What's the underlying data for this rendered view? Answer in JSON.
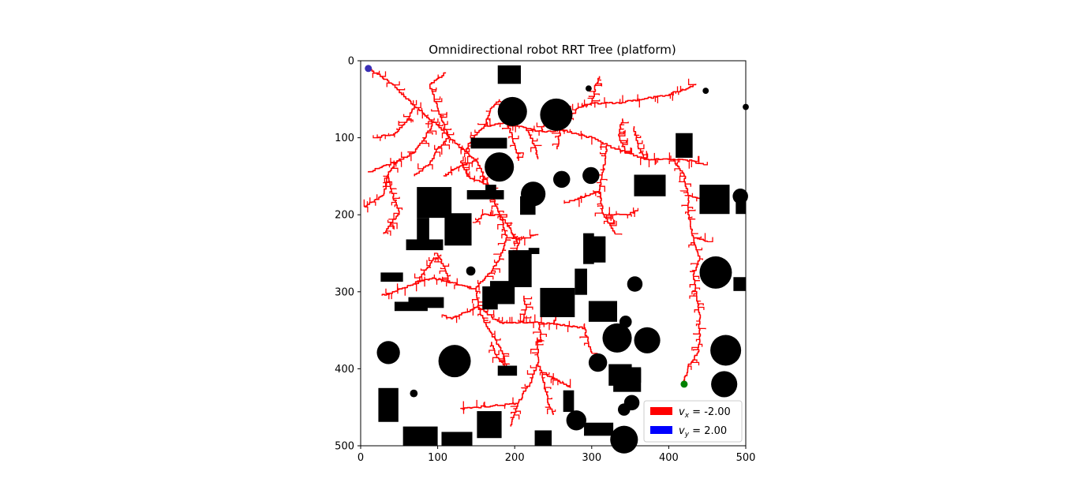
{
  "chart_data": {
    "type": "scatter",
    "title": "Omnidirectional robot RRT Tree (platform)",
    "xlabel": "",
    "ylabel": "",
    "xlim": [
      0,
      500
    ],
    "ylim": [
      500,
      0
    ],
    "y_inverted": true,
    "grid": false,
    "x_ticks": [
      "0",
      "100",
      "200",
      "300",
      "400",
      "500"
    ],
    "y_ticks": [
      "0",
      "100",
      "200",
      "300",
      "400",
      "500"
    ],
    "start_point": {
      "x": 10,
      "y": 10,
      "color": "#3a2fb5"
    },
    "goal_point": {
      "x": 420,
      "y": 420,
      "color": "#008000"
    },
    "tree_color": "#ff0000",
    "obstacle_color": "#000000",
    "legend": {
      "placement": "lower-right",
      "entries": [
        {
          "label_var": "v",
          "label_sub": "x",
          "label_value": " = -2.00",
          "color": "#ff0000"
        },
        {
          "label_var": "v",
          "label_sub": "y",
          "label_value": " = 2.00",
          "color": "#0000ff"
        }
      ]
    },
    "obstacles": {
      "circles": [
        {
          "cx": 197,
          "cy": 66,
          "r": 19
        },
        {
          "cx": 254,
          "cy": 70,
          "r": 21
        },
        {
          "cx": 180,
          "cy": 138,
          "r": 19
        },
        {
          "cx": 224,
          "cy": 173,
          "r": 16
        },
        {
          "cx": 261,
          "cy": 154,
          "r": 11
        },
        {
          "cx": 299,
          "cy": 149,
          "r": 11
        },
        {
          "cx": 296,
          "cy": 36,
          "r": 4
        },
        {
          "cx": 448,
          "cy": 39,
          "r": 4
        },
        {
          "cx": 500,
          "cy": 60,
          "r": 4
        },
        {
          "cx": 493,
          "cy": 176,
          "r": 10
        },
        {
          "cx": 461,
          "cy": 275,
          "r": 21
        },
        {
          "cx": 356,
          "cy": 290,
          "r": 10
        },
        {
          "cx": 143,
          "cy": 273,
          "r": 6
        },
        {
          "cx": 344,
          "cy": 339,
          "r": 8
        },
        {
          "cx": 333,
          "cy": 360,
          "r": 19
        },
        {
          "cx": 372,
          "cy": 363,
          "r": 17
        },
        {
          "cx": 474,
          "cy": 376,
          "r": 20
        },
        {
          "cx": 472,
          "cy": 420,
          "r": 17
        },
        {
          "cx": 36,
          "cy": 379,
          "r": 15
        },
        {
          "cx": 122,
          "cy": 390,
          "r": 21
        },
        {
          "cx": 308,
          "cy": 392,
          "r": 12
        },
        {
          "cx": 352,
          "cy": 444,
          "r": 10
        },
        {
          "cx": 342,
          "cy": 453,
          "r": 8
        },
        {
          "cx": 280,
          "cy": 467,
          "r": 13
        },
        {
          "cx": 342,
          "cy": 492,
          "r": 18
        },
        {
          "cx": 69,
          "cy": 432,
          "r": 5
        }
      ],
      "rects": [
        {
          "x": 178,
          "y": 6,
          "w": 30,
          "h": 24
        },
        {
          "x": 143,
          "y": 100,
          "w": 47,
          "h": 14
        },
        {
          "x": 409,
          "y": 94,
          "w": 22,
          "h": 32
        },
        {
          "x": 355,
          "y": 148,
          "w": 41,
          "h": 28
        },
        {
          "x": 440,
          "y": 161,
          "w": 39,
          "h": 38
        },
        {
          "x": 487,
          "y": 170,
          "w": 13,
          "h": 29
        },
        {
          "x": 73,
          "y": 164,
          "w": 45,
          "h": 40
        },
        {
          "x": 138,
          "y": 168,
          "w": 48,
          "h": 12
        },
        {
          "x": 162,
          "y": 161,
          "w": 14,
          "h": 12
        },
        {
          "x": 207,
          "y": 176,
          "w": 20,
          "h": 24
        },
        {
          "x": 73,
          "y": 204,
          "w": 16,
          "h": 30
        },
        {
          "x": 109,
          "y": 198,
          "w": 35,
          "h": 42
        },
        {
          "x": 59,
          "y": 232,
          "w": 48,
          "h": 14
        },
        {
          "x": 289,
          "y": 224,
          "w": 14,
          "h": 40
        },
        {
          "x": 300,
          "y": 228,
          "w": 18,
          "h": 34
        },
        {
          "x": 192,
          "y": 246,
          "w": 30,
          "h": 48
        },
        {
          "x": 218,
          "y": 243,
          "w": 14,
          "h": 8
        },
        {
          "x": 26,
          "y": 275,
          "w": 29,
          "h": 12
        },
        {
          "x": 278,
          "y": 270,
          "w": 16,
          "h": 34
        },
        {
          "x": 484,
          "y": 281,
          "w": 16,
          "h": 18
        },
        {
          "x": 168,
          "y": 286,
          "w": 32,
          "h": 30
        },
        {
          "x": 158,
          "y": 293,
          "w": 20,
          "h": 30
        },
        {
          "x": 233,
          "y": 295,
          "w": 45,
          "h": 38
        },
        {
          "x": 62,
          "y": 307,
          "w": 46,
          "h": 14
        },
        {
          "x": 44,
          "y": 313,
          "w": 43,
          "h": 12
        },
        {
          "x": 296,
          "y": 312,
          "w": 37,
          "h": 27
        },
        {
          "x": 178,
          "y": 396,
          "w": 25,
          "h": 13
        },
        {
          "x": 322,
          "y": 394,
          "w": 30,
          "h": 28
        },
        {
          "x": 328,
          "y": 400,
          "w": 36,
          "h": 30
        },
        {
          "x": 348,
          "y": 398,
          "w": 16,
          "h": 20
        },
        {
          "x": 23,
          "y": 425,
          "w": 26,
          "h": 44
        },
        {
          "x": 263,
          "y": 428,
          "w": 14,
          "h": 28
        },
        {
          "x": 151,
          "y": 455,
          "w": 32,
          "h": 35
        },
        {
          "x": 290,
          "y": 470,
          "w": 38,
          "h": 17
        },
        {
          "x": 55,
          "y": 475,
          "w": 45,
          "h": 25
        },
        {
          "x": 105,
          "y": 482,
          "w": 40,
          "h": 18
        },
        {
          "x": 226,
          "y": 480,
          "w": 22,
          "h": 20
        }
      ]
    },
    "tree_main_paths": [
      [
        [
          10,
          10
        ],
        [
          40,
          30
        ],
        [
          70,
          60
        ],
        [
          95,
          80
        ],
        [
          115,
          100
        ],
        [
          135,
          118
        ],
        [
          150,
          130
        ],
        [
          165,
          160
        ],
        [
          180,
          200
        ],
        [
          190,
          230
        ],
        [
          180,
          260
        ],
        [
          165,
          280
        ],
        [
          150,
          296
        ],
        [
          152,
          320
        ],
        [
          160,
          340
        ],
        [
          170,
          355
        ],
        [
          182,
          375
        ],
        [
          190,
          400
        ]
      ],
      [
        [
          150,
          296
        ],
        [
          120,
          288
        ],
        [
          95,
          282
        ],
        [
          70,
          290
        ],
        [
          45,
          300
        ],
        [
          28,
          305
        ]
      ],
      [
        [
          95,
          80
        ],
        [
          85,
          100
        ],
        [
          70,
          120
        ],
        [
          50,
          130
        ],
        [
          35,
          150
        ],
        [
          30,
          175
        ],
        [
          5,
          190
        ]
      ],
      [
        [
          35,
          150
        ],
        [
          40,
          170
        ],
        [
          50,
          200
        ],
        [
          30,
          225
        ]
      ],
      [
        [
          70,
          60
        ],
        [
          60,
          80
        ],
        [
          45,
          95
        ],
        [
          20,
          100
        ]
      ],
      [
        [
          50,
          130
        ],
        [
          25,
          140
        ],
        [
          10,
          145
        ]
      ],
      [
        [
          115,
          100
        ],
        [
          100,
          115
        ],
        [
          90,
          135
        ],
        [
          70,
          150
        ]
      ],
      [
        [
          135,
          118
        ],
        [
          145,
          100
        ],
        [
          160,
          85
        ],
        [
          190,
          80
        ],
        [
          215,
          88
        ],
        [
          235,
          92
        ],
        [
          260,
          90
        ],
        [
          280,
          95
        ],
        [
          300,
          100
        ],
        [
          320,
          110
        ],
        [
          345,
          120
        ],
        [
          370,
          128
        ],
        [
          405,
          128
        ],
        [
          430,
          130
        ],
        [
          445,
          135
        ]
      ],
      [
        [
          190,
          80
        ],
        [
          200,
          110
        ],
        [
          205,
          130
        ]
      ],
      [
        [
          260,
          90
        ],
        [
          270,
          75
        ],
        [
          280,
          62
        ],
        [
          300,
          55
        ],
        [
          330,
          55
        ],
        [
          365,
          50
        ],
        [
          395,
          45
        ],
        [
          425,
          35
        ],
        [
          435,
          30
        ]
      ],
      [
        [
          300,
          55
        ],
        [
          305,
          30
        ],
        [
          310,
          20
        ]
      ],
      [
        [
          160,
          85
        ],
        [
          170,
          60
        ],
        [
          180,
          50
        ]
      ],
      [
        [
          115,
          100
        ],
        [
          100,
          60
        ],
        [
          90,
          30
        ],
        [
          110,
          15
        ]
      ],
      [
        [
          260,
          90
        ],
        [
          255,
          115
        ]
      ],
      [
        [
          320,
          110
        ],
        [
          315,
          145
        ],
        [
          310,
          170
        ],
        [
          315,
          200
        ],
        [
          330,
          225
        ]
      ],
      [
        [
          310,
          170
        ],
        [
          280,
          180
        ],
        [
          265,
          185
        ]
      ],
      [
        [
          315,
          200
        ],
        [
          345,
          200
        ],
        [
          360,
          195
        ]
      ],
      [
        [
          405,
          128
        ],
        [
          420,
          150
        ],
        [
          425,
          175
        ],
        [
          425,
          200
        ],
        [
          432,
          230
        ],
        [
          440,
          260
        ],
        [
          432,
          280
        ],
        [
          440,
          330
        ],
        [
          440,
          360
        ],
        [
          438,
          380
        ],
        [
          425,
          400
        ],
        [
          420,
          420
        ]
      ],
      [
        [
          425,
          175
        ],
        [
          445,
          180
        ]
      ],
      [
        [
          432,
          230
        ],
        [
          450,
          235
        ]
      ],
      [
        [
          370,
          128
        ],
        [
          360,
          110
        ],
        [
          355,
          85
        ]
      ],
      [
        [
          345,
          120
        ],
        [
          335,
          95
        ],
        [
          340,
          75
        ]
      ],
      [
        [
          180,
          200
        ],
        [
          195,
          220
        ],
        [
          205,
          240
        ],
        [
          200,
          265
        ]
      ],
      [
        [
          190,
          230
        ],
        [
          215,
          230
        ],
        [
          230,
          225
        ]
      ],
      [
        [
          165,
          160
        ],
        [
          140,
          150
        ],
        [
          130,
          130
        ]
      ],
      [
        [
          180,
          200
        ],
        [
          160,
          200
        ],
        [
          150,
          210
        ]
      ],
      [
        [
          115,
          288
        ],
        [
          110,
          270
        ],
        [
          100,
          250
        ]
      ],
      [
        [
          70,
          290
        ],
        [
          85,
          270
        ],
        [
          95,
          255
        ]
      ],
      [
        [
          152,
          320
        ],
        [
          120,
          335
        ],
        [
          108,
          330
        ]
      ],
      [
        [
          152,
          320
        ],
        [
          180,
          340
        ],
        [
          210,
          340
        ],
        [
          230,
          340
        ],
        [
          250,
          342
        ],
        [
          270,
          345
        ],
        [
          290,
          347
        ]
      ],
      [
        [
          210,
          340
        ],
        [
          215,
          320
        ],
        [
          212,
          305
        ]
      ],
      [
        [
          230,
          340
        ],
        [
          235,
          365
        ]
      ],
      [
        [
          250,
          342
        ],
        [
          258,
          320
        ]
      ],
      [
        [
          290,
          347
        ],
        [
          295,
          365
        ],
        [
          300,
          380
        ]
      ],
      [
        [
          230,
          360
        ],
        [
          230,
          385
        ],
        [
          230,
          395
        ],
        [
          235,
          405
        ],
        [
          255,
          415
        ],
        [
          272,
          425
        ]
      ],
      [
        [
          230,
          395
        ],
        [
          220,
          420
        ],
        [
          205,
          445
        ],
        [
          200,
          460
        ],
        [
          195,
          475
        ]
      ],
      [
        [
          205,
          445
        ],
        [
          175,
          448
        ],
        [
          150,
          450
        ],
        [
          130,
          452
        ]
      ],
      [
        [
          235,
          405
        ],
        [
          240,
          430
        ],
        [
          245,
          450
        ],
        [
          250,
          460
        ]
      ],
      [
        [
          190,
          400
        ],
        [
          175,
          380
        ],
        [
          170,
          365
        ]
      ],
      [
        [
          215,
          88
        ],
        [
          225,
          110
        ],
        [
          230,
          128
        ]
      ],
      [
        [
          235,
          92
        ],
        [
          240,
          70
        ],
        [
          245,
          55
        ]
      ],
      [
        [
          150,
          130
        ],
        [
          125,
          140
        ],
        [
          108,
          150
        ]
      ]
    ]
  }
}
